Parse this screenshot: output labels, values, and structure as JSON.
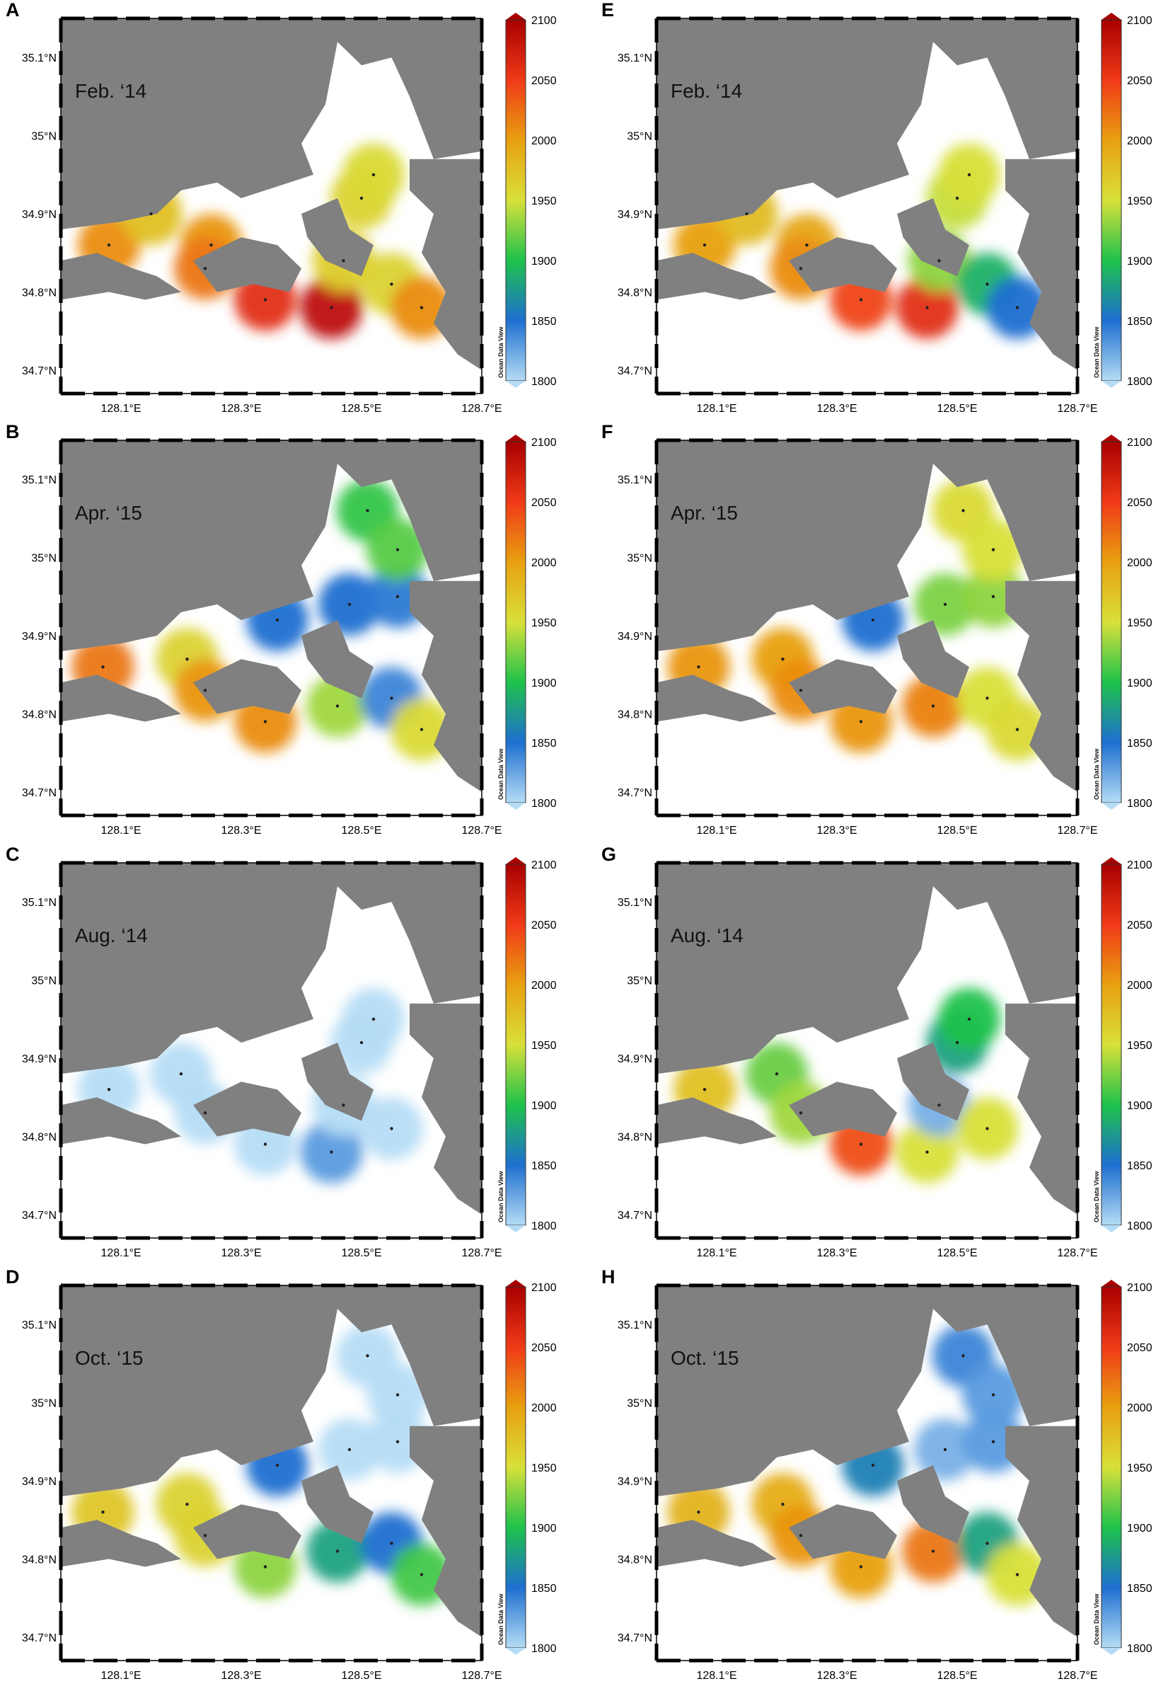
{
  "figure": {
    "panels": [
      {
        "letter": "A",
        "label": "Feb. ‘14",
        "stations": [
          [
            128.08,
            34.86
          ],
          [
            128.25,
            34.86
          ],
          [
            128.24,
            34.83
          ],
          [
            128.34,
            34.79
          ],
          [
            128.45,
            34.78
          ],
          [
            128.47,
            34.84
          ],
          [
            128.55,
            34.81
          ],
          [
            128.6,
            34.78
          ],
          [
            128.5,
            34.92
          ],
          [
            128.52,
            34.95
          ],
          [
            128.15,
            34.9
          ]
        ]
      },
      {
        "letter": "B",
        "label": "Apr. ‘15",
        "stations": [
          [
            128.07,
            34.86
          ],
          [
            128.21,
            34.87
          ],
          [
            128.24,
            34.83
          ],
          [
            128.34,
            34.79
          ],
          [
            128.46,
            34.81
          ],
          [
            128.55,
            34.82
          ],
          [
            128.6,
            34.78
          ],
          [
            128.48,
            34.94
          ],
          [
            128.56,
            34.95
          ],
          [
            128.51,
            35.06
          ],
          [
            128.56,
            35.01
          ],
          [
            128.36,
            34.92
          ]
        ]
      },
      {
        "letter": "C",
        "label": "Aug. ‘14",
        "stations": [
          [
            128.08,
            34.86
          ],
          [
            128.2,
            34.88
          ],
          [
            128.24,
            34.83
          ],
          [
            128.34,
            34.79
          ],
          [
            128.45,
            34.78
          ],
          [
            128.47,
            34.84
          ],
          [
            128.55,
            34.81
          ],
          [
            128.5,
            34.92
          ],
          [
            128.52,
            34.95
          ]
        ]
      },
      {
        "letter": "D",
        "label": "Oct. ‘15",
        "stations": [
          [
            128.07,
            34.86
          ],
          [
            128.21,
            34.87
          ],
          [
            128.24,
            34.83
          ],
          [
            128.34,
            34.79
          ],
          [
            128.46,
            34.81
          ],
          [
            128.55,
            34.82
          ],
          [
            128.6,
            34.78
          ],
          [
            128.48,
            34.94
          ],
          [
            128.56,
            34.95
          ],
          [
            128.51,
            35.06
          ],
          [
            128.56,
            35.01
          ],
          [
            128.36,
            34.92
          ]
        ]
      },
      {
        "letter": "E",
        "label": "Feb. ‘14",
        "stations": [
          [
            128.08,
            34.86
          ],
          [
            128.25,
            34.86
          ],
          [
            128.24,
            34.83
          ],
          [
            128.34,
            34.79
          ],
          [
            128.45,
            34.78
          ],
          [
            128.47,
            34.84
          ],
          [
            128.55,
            34.81
          ],
          [
            128.6,
            34.78
          ],
          [
            128.5,
            34.92
          ],
          [
            128.52,
            34.95
          ],
          [
            128.15,
            34.9
          ]
        ]
      },
      {
        "letter": "F",
        "label": "Apr. ‘15",
        "stations": [
          [
            128.07,
            34.86
          ],
          [
            128.21,
            34.87
          ],
          [
            128.24,
            34.83
          ],
          [
            128.34,
            34.79
          ],
          [
            128.46,
            34.81
          ],
          [
            128.55,
            34.82
          ],
          [
            128.6,
            34.78
          ],
          [
            128.48,
            34.94
          ],
          [
            128.56,
            34.95
          ],
          [
            128.51,
            35.06
          ],
          [
            128.56,
            35.01
          ],
          [
            128.36,
            34.92
          ]
        ]
      },
      {
        "letter": "G",
        "label": "Aug. ‘14",
        "stations": [
          [
            128.08,
            34.86
          ],
          [
            128.2,
            34.88
          ],
          [
            128.24,
            34.83
          ],
          [
            128.34,
            34.79
          ],
          [
            128.45,
            34.78
          ],
          [
            128.47,
            34.84
          ],
          [
            128.55,
            34.81
          ],
          [
            128.5,
            34.92
          ],
          [
            128.52,
            34.95
          ]
        ]
      },
      {
        "letter": "H",
        "label": "Oct. ‘15",
        "stations": [
          [
            128.07,
            34.86
          ],
          [
            128.21,
            34.87
          ],
          [
            128.24,
            34.83
          ],
          [
            128.34,
            34.79
          ],
          [
            128.46,
            34.81
          ],
          [
            128.55,
            34.82
          ],
          [
            128.6,
            34.78
          ],
          [
            128.48,
            34.94
          ],
          [
            128.56,
            34.95
          ],
          [
            128.51,
            35.06
          ],
          [
            128.56,
            35.01
          ],
          [
            128.36,
            34.92
          ]
        ]
      }
    ],
    "lat_ticks": [
      "35.1°N",
      "35°N",
      "34.9°N",
      "34.8°N",
      "34.7°N"
    ],
    "lat_values": [
      35.1,
      35.0,
      34.9,
      34.8,
      34.7
    ],
    "lon_ticks": [
      "128.1°E",
      "128.3°E",
      "128.5°E",
      "128.7°E"
    ],
    "lon_values": [
      128.1,
      128.3,
      128.5,
      128.7
    ],
    "colorbar": {
      "ticks": [
        "2100",
        "2050",
        "2000",
        "1950",
        "1900",
        "1850",
        "1800"
      ],
      "tick_values": [
        2100,
        2050,
        2000,
        1950,
        1900,
        1850,
        1800
      ],
      "range": [
        1800,
        2100
      ],
      "watermark": "Ocean Data View",
      "colors": [
        "#b5dcf5",
        "#1e6fd0",
        "#1ec24b",
        "#d8e03a",
        "#e8a010",
        "#f03a18",
        "#a80000"
      ]
    },
    "map_colors": {
      "land": "#808080",
      "sea": "#ffffff",
      "frame": "#000000",
      "station": "#222222"
    }
  }
}
